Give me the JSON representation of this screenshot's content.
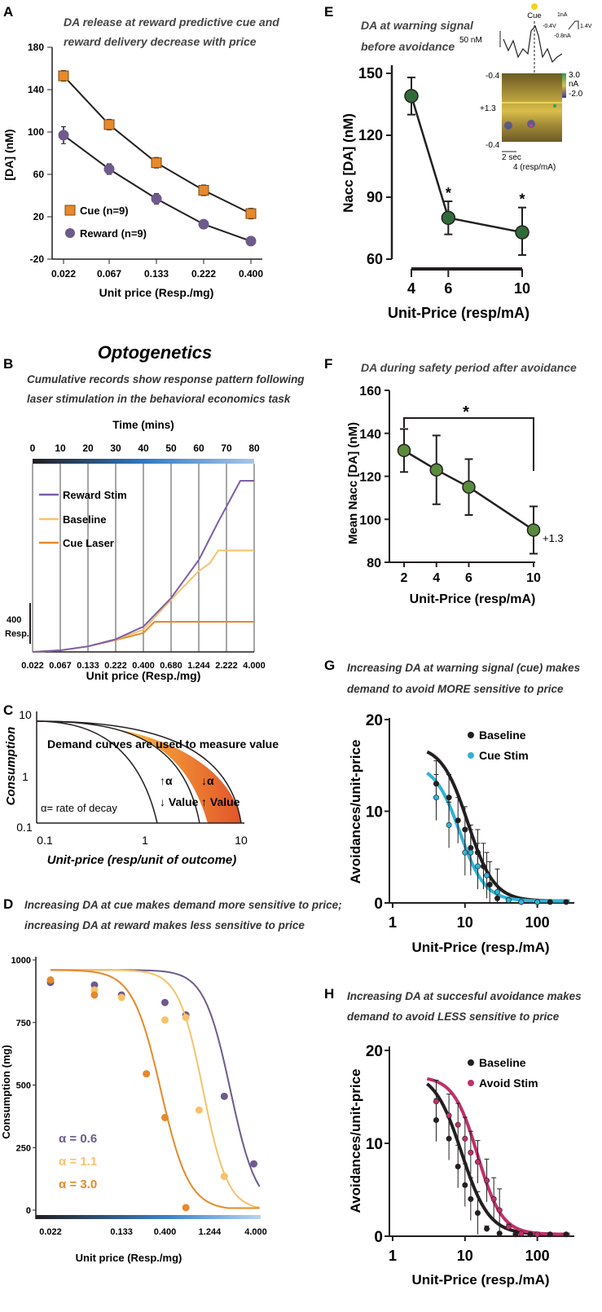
{
  "panels": {
    "A": {
      "letter": "A",
      "title_line1": "DA release at reward predictive cue and",
      "title_line2": "reward delivery decrease with price",
      "ylabel": "[DA] (nM)",
      "xlabel": "Unit price (Resp./mg)",
      "yticks": [
        "180",
        "140",
        "100",
        "60",
        "20",
        "-20"
      ],
      "xticks": [
        "0.022",
        "0.067",
        "0.133",
        "0.222",
        "0.400"
      ],
      "legend": [
        "Cue (n=9)",
        "Reward (n=9)"
      ]
    },
    "B": {
      "letter": "B",
      "heading": "Optogenetics",
      "title_line1": "Cumulative records show response pattern following",
      "title_line2": "laser stimulation in the behavioral economics task",
      "top_axis_label": "Time (mins)",
      "time_ticks": [
        "0",
        "10",
        "20",
        "30",
        "40",
        "50",
        "60",
        "70",
        "80"
      ],
      "price_ticks": [
        "0.022",
        "0.067",
        "0.133",
        "0.222",
        "0.400",
        "0.680",
        "1.244",
        "2.222",
        "4.000"
      ],
      "xlabel": "Unit price (Resp./mg)",
      "scale_value": "400",
      "scale_unit": "Resp.",
      "legend": [
        "Reward Stim",
        "Baseline",
        "Cue Laser"
      ]
    },
    "C": {
      "letter": "C",
      "title": "Demand curves are used to measure value",
      "ylabel": "Consumption",
      "xlabel": "Unit-price (resp/unit of outcome)",
      "yticks": [
        "10",
        "1",
        "0.1"
      ],
      "xticks": [
        "0.1",
        "1",
        "10"
      ],
      "alpha_note": "α= rate of decay",
      "mid_up": "↑α",
      "mid_down": "↓ Value",
      "right_up": "↓α",
      "right_down": "↑ Value"
    },
    "D": {
      "letter": "D",
      "title_line1": "Increasing DA at cue  makes demand more sensitive to price;",
      "title_line2": "increasing DA at reward makes less sensitive to price",
      "ylabel": "Consumption (mg)",
      "xlabel": "Unit price (Resp./mg)",
      "yticks": [
        "1000",
        "750",
        "500",
        "250",
        "0"
      ],
      "xticks": [
        "0.022",
        "0.133",
        "0.400",
        "1.244",
        "4.000"
      ],
      "legend": [
        "α = 0.6",
        "α = 1.1",
        "α = 3.0"
      ]
    },
    "E": {
      "letter": "E",
      "title_line1": "DA at warning signal",
      "title_line2": "before avoidance",
      "ylabel": "Nacc [DA] (nM)",
      "xlabel": "Unit-Price (resp/mA)",
      "yticks": [
        "150",
        "120",
        "90",
        "60"
      ],
      "xticks": [
        "4",
        "6",
        "10"
      ],
      "star": "*",
      "inset": {
        "cue": "Cue",
        "scale_nM": "50 nM",
        "v1": "1nA",
        "v2": "-0.4V",
        "v3": "1.4V",
        "v4": "-0.8nA",
        "cb_top": "3.0",
        "cb_unit": "nA",
        "cb_bot": "-2.0",
        "y_top": "-0.4",
        "y_mid": "+1.3",
        "y_bot": "-0.4",
        "time": "2 sec",
        "caption": "4 (resp/mA)"
      }
    },
    "F": {
      "letter": "F",
      "title": "DA during safety period after avoidance",
      "ylabel": "Mean Nacc [DA] (nM)",
      "xlabel": "Unit-Price (resp/mA)",
      "yticks": [
        "160",
        "140",
        "120",
        "100",
        "80"
      ],
      "xticks": [
        "2",
        "4",
        "6",
        "10"
      ],
      "star": "*",
      "annotation": "+1.3"
    },
    "G": {
      "letter": "G",
      "title_line1": "Increasing DA at warning signal (cue) makes",
      "title_line2": "demand to avoid MORE sensitive to price",
      "ylabel": "Avoidances/unit-price",
      "xlabel": "Unit-Price (resp./mA)",
      "yticks": [
        "20",
        "10",
        "0"
      ],
      "xticks": [
        "1",
        "10",
        "100"
      ],
      "legend": [
        "Baseline",
        "Cue Stim"
      ]
    },
    "H": {
      "letter": "H",
      "title_line1": "Increasing DA at succesful avoidance makes",
      "title_line2": "demand to avoid LESS sensitive to price",
      "ylabel": "Avoidances/unit-price",
      "xlabel": "Unit-Price (resp./mA)",
      "yticks": [
        "20",
        "10",
        "0"
      ],
      "xticks": [
        "1",
        "10",
        "100"
      ],
      "legend": [
        "Baseline",
        "Avoid Stim"
      ]
    }
  },
  "colors": {
    "cue": "#e8892c",
    "reward": "#6e5a8c",
    "reward_stim": "#7b5ea7",
    "baseline_light": "#f7c26b",
    "cue_laser": "#e6892a",
    "green": "#2f6b3a",
    "dark": "#231f20",
    "cyan": "#2fb3d6",
    "magenta": "#c0306a"
  },
  "chart_data": [
    {
      "panel": "A",
      "type": "line",
      "categories": [
        "0.022",
        "0.067",
        "0.133",
        "0.222",
        "0.400"
      ],
      "series": [
        {
          "name": "Cue (n=9)",
          "values": [
            153,
            107,
            71,
            45,
            23
          ],
          "errors": [
            5,
            5,
            5,
            5,
            5
          ]
        },
        {
          "name": "Reward (n=9)",
          "values": [
            97,
            65,
            37,
            13,
            -3
          ],
          "errors": [
            8,
            5,
            5,
            4,
            4
          ]
        }
      ],
      "ylim": [
        -20,
        180
      ]
    },
    {
      "panel": "B",
      "type": "line",
      "x_label_time": [
        0,
        10,
        20,
        30,
        40,
        50,
        60,
        70,
        80
      ],
      "series": [
        {
          "name": "Reward Stim",
          "points": [
            [
              0,
              0
            ],
            [
              10,
              10
            ],
            [
              20,
              35
            ],
            [
              30,
              80
            ],
            [
              40,
              160
            ],
            [
              50,
              340
            ],
            [
              60,
              580
            ],
            [
              67,
              820
            ],
            [
              75,
              1080
            ],
            [
              80,
              1080
            ]
          ]
        },
        {
          "name": "Baseline",
          "points": [
            [
              0,
              0
            ],
            [
              10,
              10
            ],
            [
              20,
              35
            ],
            [
              30,
              78
            ],
            [
              40,
              140
            ],
            [
              50,
              330
            ],
            [
              60,
              510
            ],
            [
              64,
              560
            ],
            [
              67,
              640
            ],
            [
              80,
              640
            ]
          ]
        },
        {
          "name": "Cue Laser",
          "points": [
            [
              0,
              0
            ],
            [
              10,
              10
            ],
            [
              20,
              35
            ],
            [
              30,
              75
            ],
            [
              40,
              120
            ],
            [
              44,
              190
            ],
            [
              80,
              190
            ]
          ]
        }
      ]
    },
    {
      "panel": "C",
      "type": "area",
      "x_range": [
        0.1,
        10
      ],
      "y_range": [
        0.1,
        10
      ],
      "curves": [
        "high alpha",
        "mid alpha",
        "low alpha"
      ]
    },
    {
      "panel": "D",
      "type": "line",
      "categories": [
        "0.022",
        "0.133",
        "0.400",
        "1.244",
        "4.000"
      ],
      "series": [
        {
          "name": "α = 0.6",
          "points": [
            [
              0.022,
              910
            ],
            [
              0.067,
              900
            ],
            [
              0.133,
              860
            ],
            [
              0.4,
              830
            ],
            [
              0.68,
              780
            ],
            [
              1.8,
              455
            ],
            [
              3.8,
              185
            ]
          ]
        },
        {
          "name": "α = 1.1",
          "points": [
            [
              0.067,
              880
            ],
            [
              0.133,
              850
            ],
            [
              0.4,
              760
            ],
            [
              0.68,
              770
            ],
            [
              0.95,
              400
            ],
            [
              1.8,
              135
            ]
          ]
        },
        {
          "name": "α = 3.0",
          "points": [
            [
              0.022,
              920
            ],
            [
              0.067,
              860
            ],
            [
              0.25,
              545
            ],
            [
              0.4,
              370
            ],
            [
              0.68,
              10
            ]
          ]
        }
      ],
      "ylim": [
        0,
        1000
      ]
    },
    {
      "panel": "E",
      "type": "line",
      "categories": [
        "4",
        "6",
        "10"
      ],
      "x": [
        4,
        6,
        10
      ],
      "values": [
        139,
        80,
        73
      ],
      "errors_up": [
        9,
        8,
        12
      ],
      "errors_down": [
        9,
        8,
        11
      ],
      "ylim": [
        60,
        150
      ]
    },
    {
      "panel": "F",
      "type": "line",
      "categories": [
        "2",
        "4",
        "6",
        "10"
      ],
      "x": [
        2,
        4,
        6,
        10
      ],
      "values": [
        132,
        123,
        115,
        95
      ],
      "errors": [
        10,
        16,
        13,
        11
      ],
      "ylim": [
        80,
        160
      ]
    },
    {
      "panel": "G",
      "type": "scatter",
      "x_scale": "log",
      "xlim": [
        1,
        300
      ],
      "ylim": [
        0,
        20
      ],
      "series": [
        {
          "name": "Baseline",
          "points": [
            [
              4,
              13
            ],
            [
              6,
              11.5
            ],
            [
              8,
              9
            ],
            [
              10,
              8
            ],
            [
              12,
              6
            ],
            [
              15,
              5.5
            ],
            [
              18,
              4
            ],
            [
              22,
              2
            ],
            [
              28,
              0.5
            ],
            [
              40,
              0.3
            ],
            [
              60,
              0.1
            ],
            [
              100,
              0.1
            ],
            [
              150,
              0.1
            ],
            [
              250,
              0.1
            ]
          ]
        },
        {
          "name": "Cue Stim",
          "points": [
            [
              4,
              11.5
            ],
            [
              6,
              8.5
            ],
            [
              10,
              5.5
            ],
            [
              12,
              5.5
            ],
            [
              15,
              4
            ],
            [
              20,
              3
            ],
            [
              28,
              1.2
            ],
            [
              40,
              0.3
            ],
            [
              60,
              0.1
            ],
            [
              100,
              0.1
            ]
          ]
        }
      ]
    },
    {
      "panel": "H",
      "type": "scatter",
      "x_scale": "log",
      "xlim": [
        1,
        300
      ],
      "ylim": [
        0,
        20
      ],
      "series": [
        {
          "name": "Baseline",
          "points": [
            [
              4,
              12.5
            ],
            [
              6,
              10.5
            ],
            [
              8,
              7.5
            ],
            [
              10,
              5.5
            ],
            [
              12,
              4
            ],
            [
              15,
              2.5
            ],
            [
              20,
              0.8
            ],
            [
              30,
              0.3
            ],
            [
              50,
              0.2
            ],
            [
              80,
              0.2
            ],
            [
              150,
              0.2
            ],
            [
              250,
              0.2
            ]
          ]
        },
        {
          "name": "Avoid Stim",
          "points": [
            [
              4,
              14.5
            ],
            [
              6,
              13
            ],
            [
              8,
              12
            ],
            [
              10,
              10.5
            ],
            [
              12,
              9
            ],
            [
              15,
              8
            ],
            [
              20,
              6
            ],
            [
              25,
              4
            ],
            [
              30,
              2.8
            ],
            [
              40,
              1
            ],
            [
              60,
              0.3
            ],
            [
              100,
              0.2
            ]
          ]
        }
      ]
    }
  ]
}
